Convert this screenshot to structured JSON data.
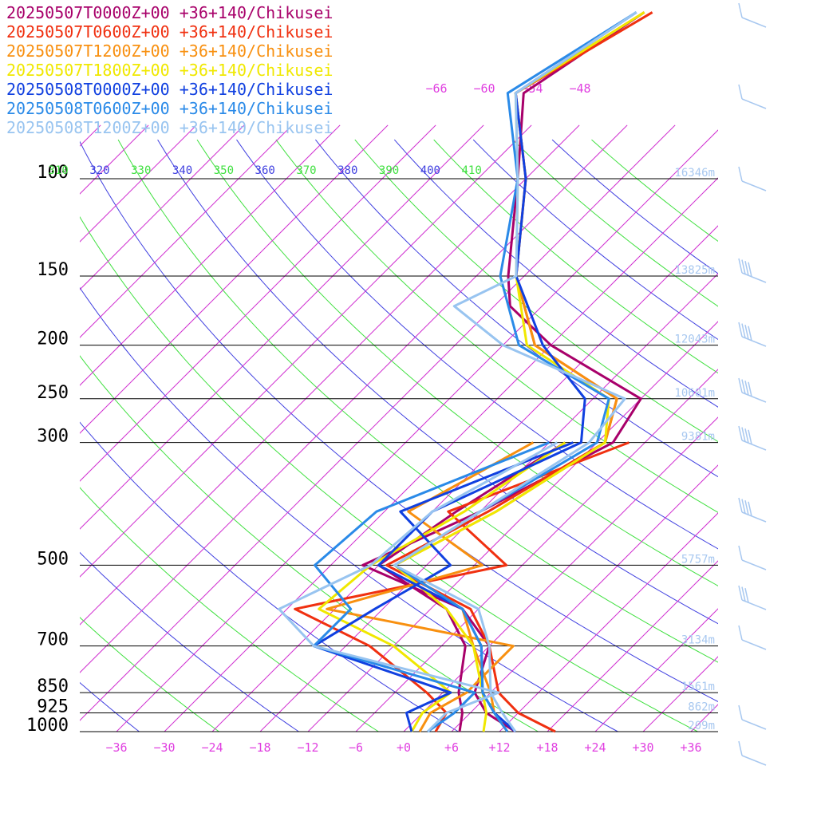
{
  "legend": [
    {
      "label": "20250507T0000Z+00 +36+140/Chikusei",
      "color": "#a8006a"
    },
    {
      "label": "20250507T0600Z+00 +36+140/Chikusei",
      "color": "#f03010"
    },
    {
      "label": "20250507T1200Z+00 +36+140/Chikusei",
      "color": "#f89010"
    },
    {
      "label": "20250507T1800Z+00 +36+140/Chikusei",
      "color": "#f0e800"
    },
    {
      "label": "20250508T0000Z+00 +36+140/Chikusei",
      "color": "#1040e0"
    },
    {
      "label": "20250508T0600Z+00 +36+140/Chikusei",
      "color": "#2a8ae8"
    },
    {
      "label": "20250508T1200Z+00 +36+140/Chikusei",
      "color": "#98c4f0"
    }
  ],
  "chart_data": {
    "type": "line",
    "pressure_levels": [
      100,
      150,
      200,
      250,
      300,
      500,
      700,
      850,
      925,
      1000
    ],
    "pressure_labels": [
      "100",
      "150",
      "200",
      "250",
      "300",
      "500",
      "700",
      "850",
      "925",
      "1000"
    ],
    "heights": [
      "16346m",
      "13825m",
      "12043m",
      "10601m",
      "9381m",
      "5757m",
      "3134m",
      "1561m",
      "862m",
      "209m"
    ],
    "x_ticks": [
      "−36",
      "−30",
      "−24",
      "−18",
      "−12",
      "−6",
      "+0",
      "+6",
      "+12",
      "+18",
      "+24",
      "+30",
      "+36"
    ],
    "upper_isotherms": [
      "−66",
      "−60",
      "−54",
      "−48"
    ],
    "theta_labels": [
      "310",
      "320",
      "330",
      "340",
      "350",
      "360",
      "370",
      "380",
      "390",
      "400",
      "410"
    ],
    "series": [
      {
        "name": "20250507T0000Z+00 +36+140/Chikusei",
        "color": "#a8006a",
        "temp": [
          [
            1000,
            14
          ],
          [
            925,
            8
          ],
          [
            850,
            4
          ],
          [
            700,
            0
          ],
          [
            600,
            -8
          ],
          [
            500,
            -26
          ],
          [
            400,
            -18
          ],
          [
            300,
            -10
          ],
          [
            250,
            -12
          ],
          [
            200,
            -30
          ],
          [
            170,
            -40
          ],
          [
            150,
            -44
          ],
          [
            100,
            -55
          ],
          [
            70,
            -65
          ],
          [
            50,
            -60
          ]
        ],
        "dew": [
          [
            1000,
            7
          ],
          [
            925,
            5
          ],
          [
            850,
            2
          ],
          [
            700,
            -3
          ],
          [
            600,
            -10
          ],
          [
            500,
            -24
          ],
          [
            400,
            -21
          ],
          [
            300,
            -16
          ]
        ]
      },
      {
        "name": "20250507T0600Z+00 +36+140/Chikusei",
        "color": "#f03010",
        "temp": [
          [
            1000,
            19
          ],
          [
            925,
            12
          ],
          [
            850,
            7
          ],
          [
            700,
            0
          ],
          [
            600,
            -7
          ],
          [
            500,
            -23
          ],
          [
            400,
            -17
          ],
          [
            300,
            -11
          ],
          [
            250,
            -15
          ],
          [
            200,
            -32
          ],
          [
            150,
            -43
          ],
          [
            100,
            -54
          ],
          [
            70,
            -66
          ],
          [
            50,
            -59
          ]
        ],
        "dew": [
          [
            1000,
            4
          ],
          [
            925,
            3
          ],
          [
            850,
            -2
          ],
          [
            700,
            -15
          ],
          [
            600,
            -29
          ],
          [
            500,
            -8
          ],
          [
            400,
            -22
          ],
          [
            300,
            -8
          ]
        ]
      },
      {
        "name": "20250507T1200Z+00 +36+140/Chikusei",
        "color": "#f89010",
        "temp": [
          [
            1000,
            13
          ],
          [
            925,
            9
          ],
          [
            850,
            6
          ],
          [
            700,
            -2
          ],
          [
            600,
            -8
          ],
          [
            500,
            -22
          ],
          [
            400,
            -16
          ],
          [
            300,
            -11
          ],
          [
            250,
            -15
          ],
          [
            200,
            -32
          ],
          [
            150,
            -43
          ],
          [
            100,
            -54
          ],
          [
            70,
            -66
          ],
          [
            50,
            -60
          ]
        ],
        "dew": [
          [
            1000,
            2
          ],
          [
            925,
            1
          ],
          [
            850,
            3
          ],
          [
            700,
            3
          ],
          [
            600,
            -25
          ],
          [
            500,
            -11
          ],
          [
            400,
            -27
          ],
          [
            300,
            -20
          ]
        ]
      },
      {
        "name": "20250507T1800Z+00 +36+140/Chikusei",
        "color": "#f0e800",
        "temp": [
          [
            1000,
            10
          ],
          [
            925,
            8
          ],
          [
            850,
            5
          ],
          [
            700,
            -2
          ],
          [
            600,
            -10
          ],
          [
            500,
            -22
          ],
          [
            400,
            -16
          ],
          [
            300,
            -11
          ],
          [
            250,
            -16
          ],
          [
            200,
            -33
          ],
          [
            150,
            -43
          ],
          [
            100,
            -55
          ],
          [
            70,
            -66
          ],
          [
            50,
            -60
          ]
        ],
        "dew": [
          [
            1000,
            1
          ],
          [
            925,
            0
          ],
          [
            850,
            1
          ],
          [
            700,
            -12
          ],
          [
            600,
            -26
          ],
          [
            500,
            -25
          ],
          [
            400,
            -20
          ],
          [
            300,
            -16
          ]
        ]
      },
      {
        "name": "20250508T0000Z+00 +36+140/Chikusei",
        "color": "#1040e0",
        "temp": [
          [
            1000,
            14
          ],
          [
            925,
            9
          ],
          [
            850,
            5
          ],
          [
            700,
            -1
          ],
          [
            600,
            -8
          ],
          [
            500,
            -24
          ],
          [
            400,
            -24
          ],
          [
            300,
            -14
          ],
          [
            250,
            -19
          ],
          [
            200,
            -31
          ],
          [
            150,
            -43
          ],
          [
            100,
            -54
          ],
          [
            70,
            -66
          ],
          [
            50,
            -61
          ]
        ],
        "dew": [
          [
            1000,
            1
          ],
          [
            925,
            -2
          ],
          [
            850,
            1
          ],
          [
            700,
            -22
          ],
          [
            600,
            -19
          ],
          [
            500,
            -15
          ],
          [
            400,
            -28
          ],
          [
            300,
            -15
          ]
        ]
      },
      {
        "name": "20250508T0600Z+00 +36+140/Chikusei",
        "color": "#2a8ae8",
        "temp": [
          [
            1000,
            13
          ],
          [
            925,
            9
          ],
          [
            850,
            5
          ],
          [
            700,
            -1
          ],
          [
            600,
            -8
          ],
          [
            500,
            -22
          ],
          [
            400,
            -18
          ],
          [
            300,
            -12
          ],
          [
            250,
            -16
          ],
          [
            200,
            -34
          ],
          [
            150,
            -45
          ],
          [
            100,
            -55
          ],
          [
            70,
            -67
          ],
          [
            50,
            -61
          ]
        ],
        "dew": [
          [
            1000,
            3
          ],
          [
            925,
            4
          ],
          [
            850,
            4
          ],
          [
            700,
            -22
          ],
          [
            600,
            -22
          ],
          [
            500,
            -32
          ],
          [
            400,
            -31
          ],
          [
            300,
            -18
          ]
        ]
      },
      {
        "name": "20250508T1200Z+00 +36+140/Chikusei",
        "color": "#98c4f0",
        "temp": [
          [
            1000,
            14
          ],
          [
            925,
            10
          ],
          [
            850,
            6
          ],
          [
            700,
            0
          ],
          [
            600,
            -6
          ],
          [
            500,
            -22
          ],
          [
            400,
            -18
          ],
          [
            300,
            -13
          ],
          [
            250,
            -14
          ],
          [
            200,
            -36
          ],
          [
            170,
            -47
          ],
          [
            150,
            -43
          ],
          [
            100,
            -55
          ],
          [
            70,
            -66
          ],
          [
            50,
            -61
          ]
        ],
        "dew": [
          [
            1000,
            3
          ],
          [
            925,
            3
          ],
          [
            850,
            7
          ],
          [
            700,
            -22
          ],
          [
            600,
            -31
          ],
          [
            500,
            -25
          ],
          [
            400,
            -24
          ],
          [
            300,
            -17
          ]
        ]
      }
    ]
  }
}
